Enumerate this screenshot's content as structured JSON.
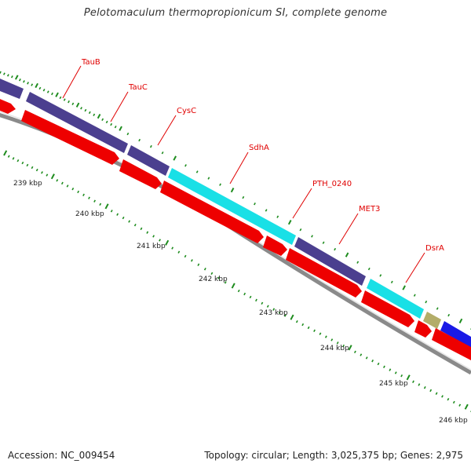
{
  "title": "Pelotomaculum thermopropionicum SI, complete genome",
  "accession": "Accession: NC_009454",
  "topology": "Topology: circular; Length: 3,025,375 bp; Genes: 2,975",
  "colors": {
    "outer_dark": "#4b3f8f",
    "outer_cyan": "#19e0e6",
    "outer_olive": "#b3ad69",
    "outer_blue": "#1a1ae6",
    "cds_red": "#ee0000",
    "backbone_gray": "#8a8a8a",
    "tick_green": "#1e8c1e",
    "label_red": "#e00000"
  },
  "gene_labels": [
    "TauB",
    "TauC",
    "CysC",
    "SdhA",
    "PTH_0240",
    "MET3",
    "DsrA"
  ],
  "kbp_labels": [
    "239 kbp",
    "240 kbp",
    "241 kbp",
    "242 kbp",
    "243 kbp",
    "244 kbp",
    "245 kbp",
    "246 kbp"
  ]
}
